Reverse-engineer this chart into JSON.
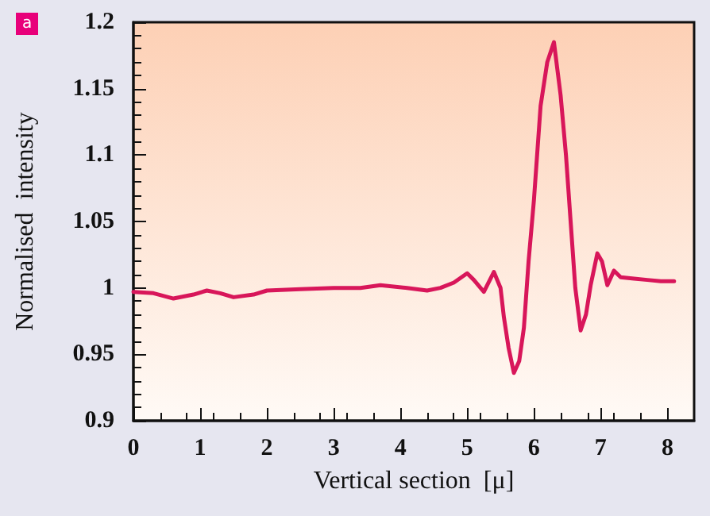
{
  "chart_data": {
    "type": "line",
    "xlabel": "Vertical section  [μ]",
    "ylabel": "Normalised  intensity",
    "annotations": [
      "a"
    ],
    "x": [
      0,
      0.3,
      0.6,
      0.9,
      1.1,
      1.3,
      1.5,
      1.8,
      2.0,
      2.5,
      3.0,
      3.4,
      3.7,
      4.1,
      4.4,
      4.6,
      4.8,
      5.0,
      5.1,
      5.25,
      5.4,
      5.5,
      5.55,
      5.62,
      5.7,
      5.78,
      5.85,
      5.92,
      6.0,
      6.1,
      6.2,
      6.3,
      6.4,
      6.48,
      6.55,
      6.62,
      6.7,
      6.78,
      6.85,
      6.95,
      7.02,
      7.1,
      7.2,
      7.3,
      7.5,
      7.7,
      7.9,
      8.1
    ],
    "series": [
      {
        "color": "#d8165a",
        "values": [
          0.997,
          0.996,
          0.992,
          0.995,
          0.998,
          0.996,
          0.993,
          0.995,
          0.998,
          0.999,
          1.0,
          1.0,
          1.002,
          1.0,
          0.998,
          1.0,
          1.004,
          1.011,
          1.006,
          0.997,
          1.012,
          1.0,
          0.978,
          0.955,
          0.936,
          0.945,
          0.97,
          1.02,
          1.066,
          1.137,
          1.17,
          1.185,
          1.145,
          1.1,
          1.05,
          1.0,
          0.968,
          0.98,
          1.002,
          1.026,
          1.02,
          1.002,
          1.013,
          1.008,
          1.007,
          1.006,
          1.005,
          1.005
        ]
      }
    ],
    "xlim": [
      0,
      8.4
    ],
    "xticks": [
      0,
      1,
      2,
      3,
      4,
      5,
      6,
      7,
      8
    ],
    "ylim": [
      0.9,
      1.2
    ],
    "yticks": [
      0.9,
      0.95,
      1,
      1.05,
      1.1,
      1.15,
      1.2
    ],
    "marker": "none",
    "line_style": "solid"
  }
}
